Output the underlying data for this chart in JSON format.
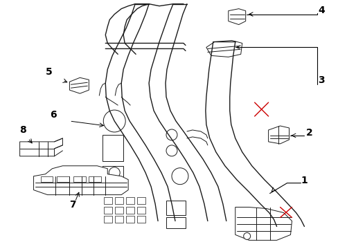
{
  "bg_color": "#ffffff",
  "line_color": "#1a1a1a",
  "red_color": "#cc0000",
  "label_color": "#000000",
  "label_fontsize": 10,
  "figsize": [
    4.89,
    3.6
  ],
  "dpi": 100
}
